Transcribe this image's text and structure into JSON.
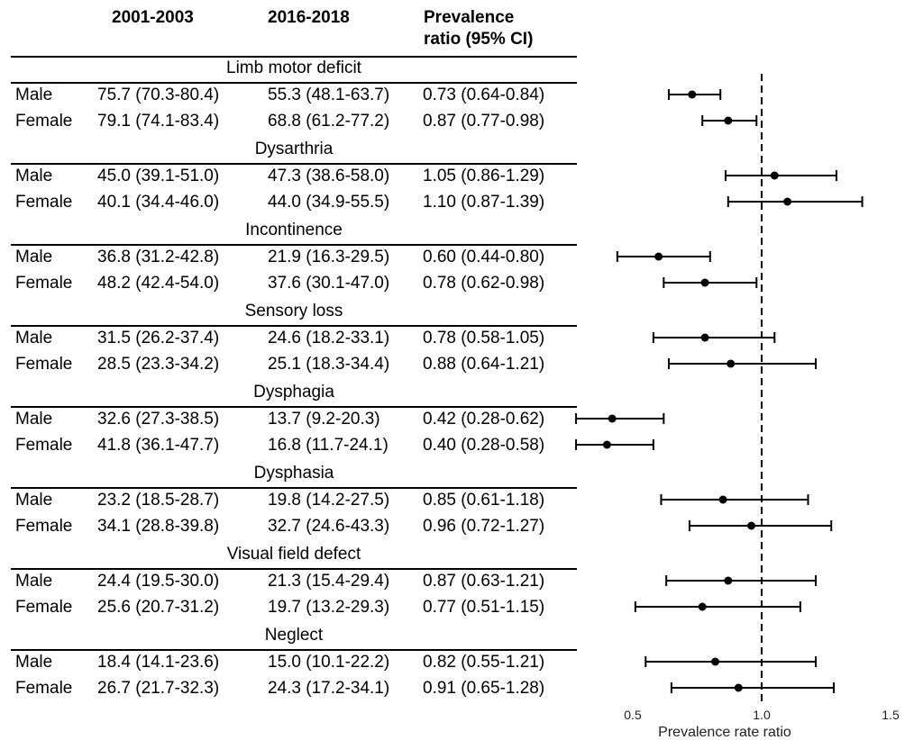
{
  "table": {
    "headers": [
      "2001-2003",
      "2016-2018",
      "Prevalence\nratio (95% CI)"
    ],
    "sections": [
      {
        "title": "Limb motor deficit",
        "rows": [
          {
            "sex": "Male",
            "p1": "75.7 (70.3-80.4)",
            "p2": "55.3 (48.1-63.7)",
            "ratio": "0.73 (0.64-0.84)"
          },
          {
            "sex": "Female",
            "p1": "79.1 (74.1-83.4)",
            "p2": "68.8 (61.2-77.2)",
            "ratio": "0.87 (0.77-0.98)"
          }
        ]
      },
      {
        "title": "Dysarthria",
        "rows": [
          {
            "sex": "Male",
            "p1": "45.0 (39.1-51.0)",
            "p2": "47.3 (38.6-58.0)",
            "ratio": "1.05 (0.86-1.29)"
          },
          {
            "sex": "Female",
            "p1": "40.1 (34.4-46.0)",
            "p2": "44.0 (34.9-55.5)",
            "ratio": "1.10 (0.87-1.39)"
          }
        ]
      },
      {
        "title": "Incontinence",
        "rows": [
          {
            "sex": "Male",
            "p1": "36.8 (31.2-42.8)",
            "p2": "21.9 (16.3-29.5)",
            "ratio": "0.60 (0.44-0.80)"
          },
          {
            "sex": "Female",
            "p1": "48.2 (42.4-54.0)",
            "p2": "37.6 (30.1-47.0)",
            "ratio": "0.78 (0.62-0.98)"
          }
        ]
      },
      {
        "title": "Sensory loss",
        "rows": [
          {
            "sex": "Male",
            "p1": "31.5 (26.2-37.4)",
            "p2": "24.6 (18.2-33.1)",
            "ratio": "0.78 (0.58-1.05)"
          },
          {
            "sex": "Female",
            "p1": "28.5 (23.3-34.2)",
            "p2": "25.1 (18.3-34.4)",
            "ratio": "0.88 (0.64-1.21)"
          }
        ]
      },
      {
        "title": "Dysphagia",
        "rows": [
          {
            "sex": "Male",
            "p1": "32.6 (27.3-38.5)",
            "p2": "13.7 (9.2-20.3)",
            "ratio": "0.42 (0.28-0.62)"
          },
          {
            "sex": "Female",
            "p1": "41.8 (36.1-47.7)",
            "p2": "16.8 (11.7-24.1)",
            "ratio": "0.40 (0.28-0.58)"
          }
        ]
      },
      {
        "title": "Dysphasia",
        "rows": [
          {
            "sex": "Male",
            "p1": "23.2 (18.5-28.7)",
            "p2": "19.8 (14.2-27.5)",
            "ratio": "0.85 (0.61-1.18)"
          },
          {
            "sex": "Female",
            "p1": "34.1 (28.8-39.8)",
            "p2": "32.7 (24.6-43.3)",
            "ratio": "0.96 (0.72-1.27)"
          }
        ]
      },
      {
        "title": "Visual field defect",
        "rows": [
          {
            "sex": "Male",
            "p1": "24.4 (19.5-30.0)",
            "p2": "21.3 (15.4-29.4)",
            "ratio": "0.87 (0.63-1.21)"
          },
          {
            "sex": "Female",
            "p1": "25.6 (20.7-31.2)",
            "p2": "19.7 (13.2-29.3)",
            "ratio": "0.77 (0.51-1.15)"
          }
        ]
      },
      {
        "title": "Neglect",
        "rows": [
          {
            "sex": "Male",
            "p1": "18.4 (14.1-23.6)",
            "p2": "15.0 (10.1-22.2)",
            "ratio": "0.82 (0.55-1.21)"
          },
          {
            "sex": "Female",
            "p1": "26.7 (21.7-32.3)",
            "p2": "24.3 (17.2-34.1)",
            "ratio": "0.91 (0.65-1.28)"
          }
        ]
      }
    ]
  },
  "chart_data": {
    "type": "scatter",
    "xlabel": "Prevalence rate ratio",
    "xlim": [
      0.5,
      1.5
    ],
    "xticks": [
      "0.5",
      "1.0",
      "1.5"
    ],
    "reference_line": 1.0,
    "points": [
      {
        "est": 0.73,
        "lo": 0.64,
        "hi": 0.84
      },
      {
        "est": 0.87,
        "lo": 0.77,
        "hi": 0.98
      },
      {
        "est": 1.05,
        "lo": 0.86,
        "hi": 1.29
      },
      {
        "est": 1.1,
        "lo": 0.87,
        "hi": 1.39
      },
      {
        "est": 0.6,
        "lo": 0.44,
        "hi": 0.8
      },
      {
        "est": 0.78,
        "lo": 0.62,
        "hi": 0.98
      },
      {
        "est": 0.78,
        "lo": 0.58,
        "hi": 1.05
      },
      {
        "est": 0.88,
        "lo": 0.64,
        "hi": 1.21
      },
      {
        "est": 0.42,
        "lo": 0.28,
        "hi": 0.62
      },
      {
        "est": 0.4,
        "lo": 0.28,
        "hi": 0.58
      },
      {
        "est": 0.85,
        "lo": 0.61,
        "hi": 1.18
      },
      {
        "est": 0.96,
        "lo": 0.72,
        "hi": 1.27
      },
      {
        "est": 0.87,
        "lo": 0.63,
        "hi": 1.21
      },
      {
        "est": 0.77,
        "lo": 0.51,
        "hi": 1.15
      },
      {
        "est": 0.82,
        "lo": 0.55,
        "hi": 1.21
      },
      {
        "est": 0.91,
        "lo": 0.65,
        "hi": 1.28
      }
    ]
  }
}
